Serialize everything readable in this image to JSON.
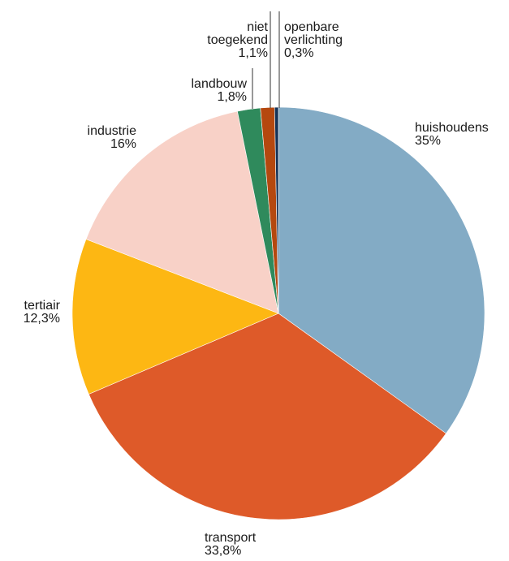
{
  "chart_data": {
    "type": "pie",
    "title": "",
    "start_angle_deg": 0,
    "direction": "clockwise",
    "slices": [
      {
        "label": [
          "huishoudens"
        ],
        "value_label": "35%",
        "value": 35.0,
        "color": "#83abc5"
      },
      {
        "label": [
          "transport"
        ],
        "value_label": "33,8%",
        "value": 33.8,
        "color": "#de5a29"
      },
      {
        "label": [
          "tertiair"
        ],
        "value_label": "12,3%",
        "value": 12.3,
        "color": "#fdb713"
      },
      {
        "label": [
          "industrie"
        ],
        "value_label": "16%",
        "value": 16.0,
        "color": "#f8d1c7"
      },
      {
        "label": [
          "landbouw"
        ],
        "value_label": "1,8%",
        "value": 1.8,
        "color": "#2f8a5c"
      },
      {
        "label": [
          "niet",
          "toegekend"
        ],
        "value_label": "1,1%",
        "value": 1.1,
        "color": "#b5480f"
      },
      {
        "label": [
          "openbare",
          "verlichting"
        ],
        "value_label": "0,3%",
        "value": 0.3,
        "color": "#153358"
      }
    ]
  }
}
